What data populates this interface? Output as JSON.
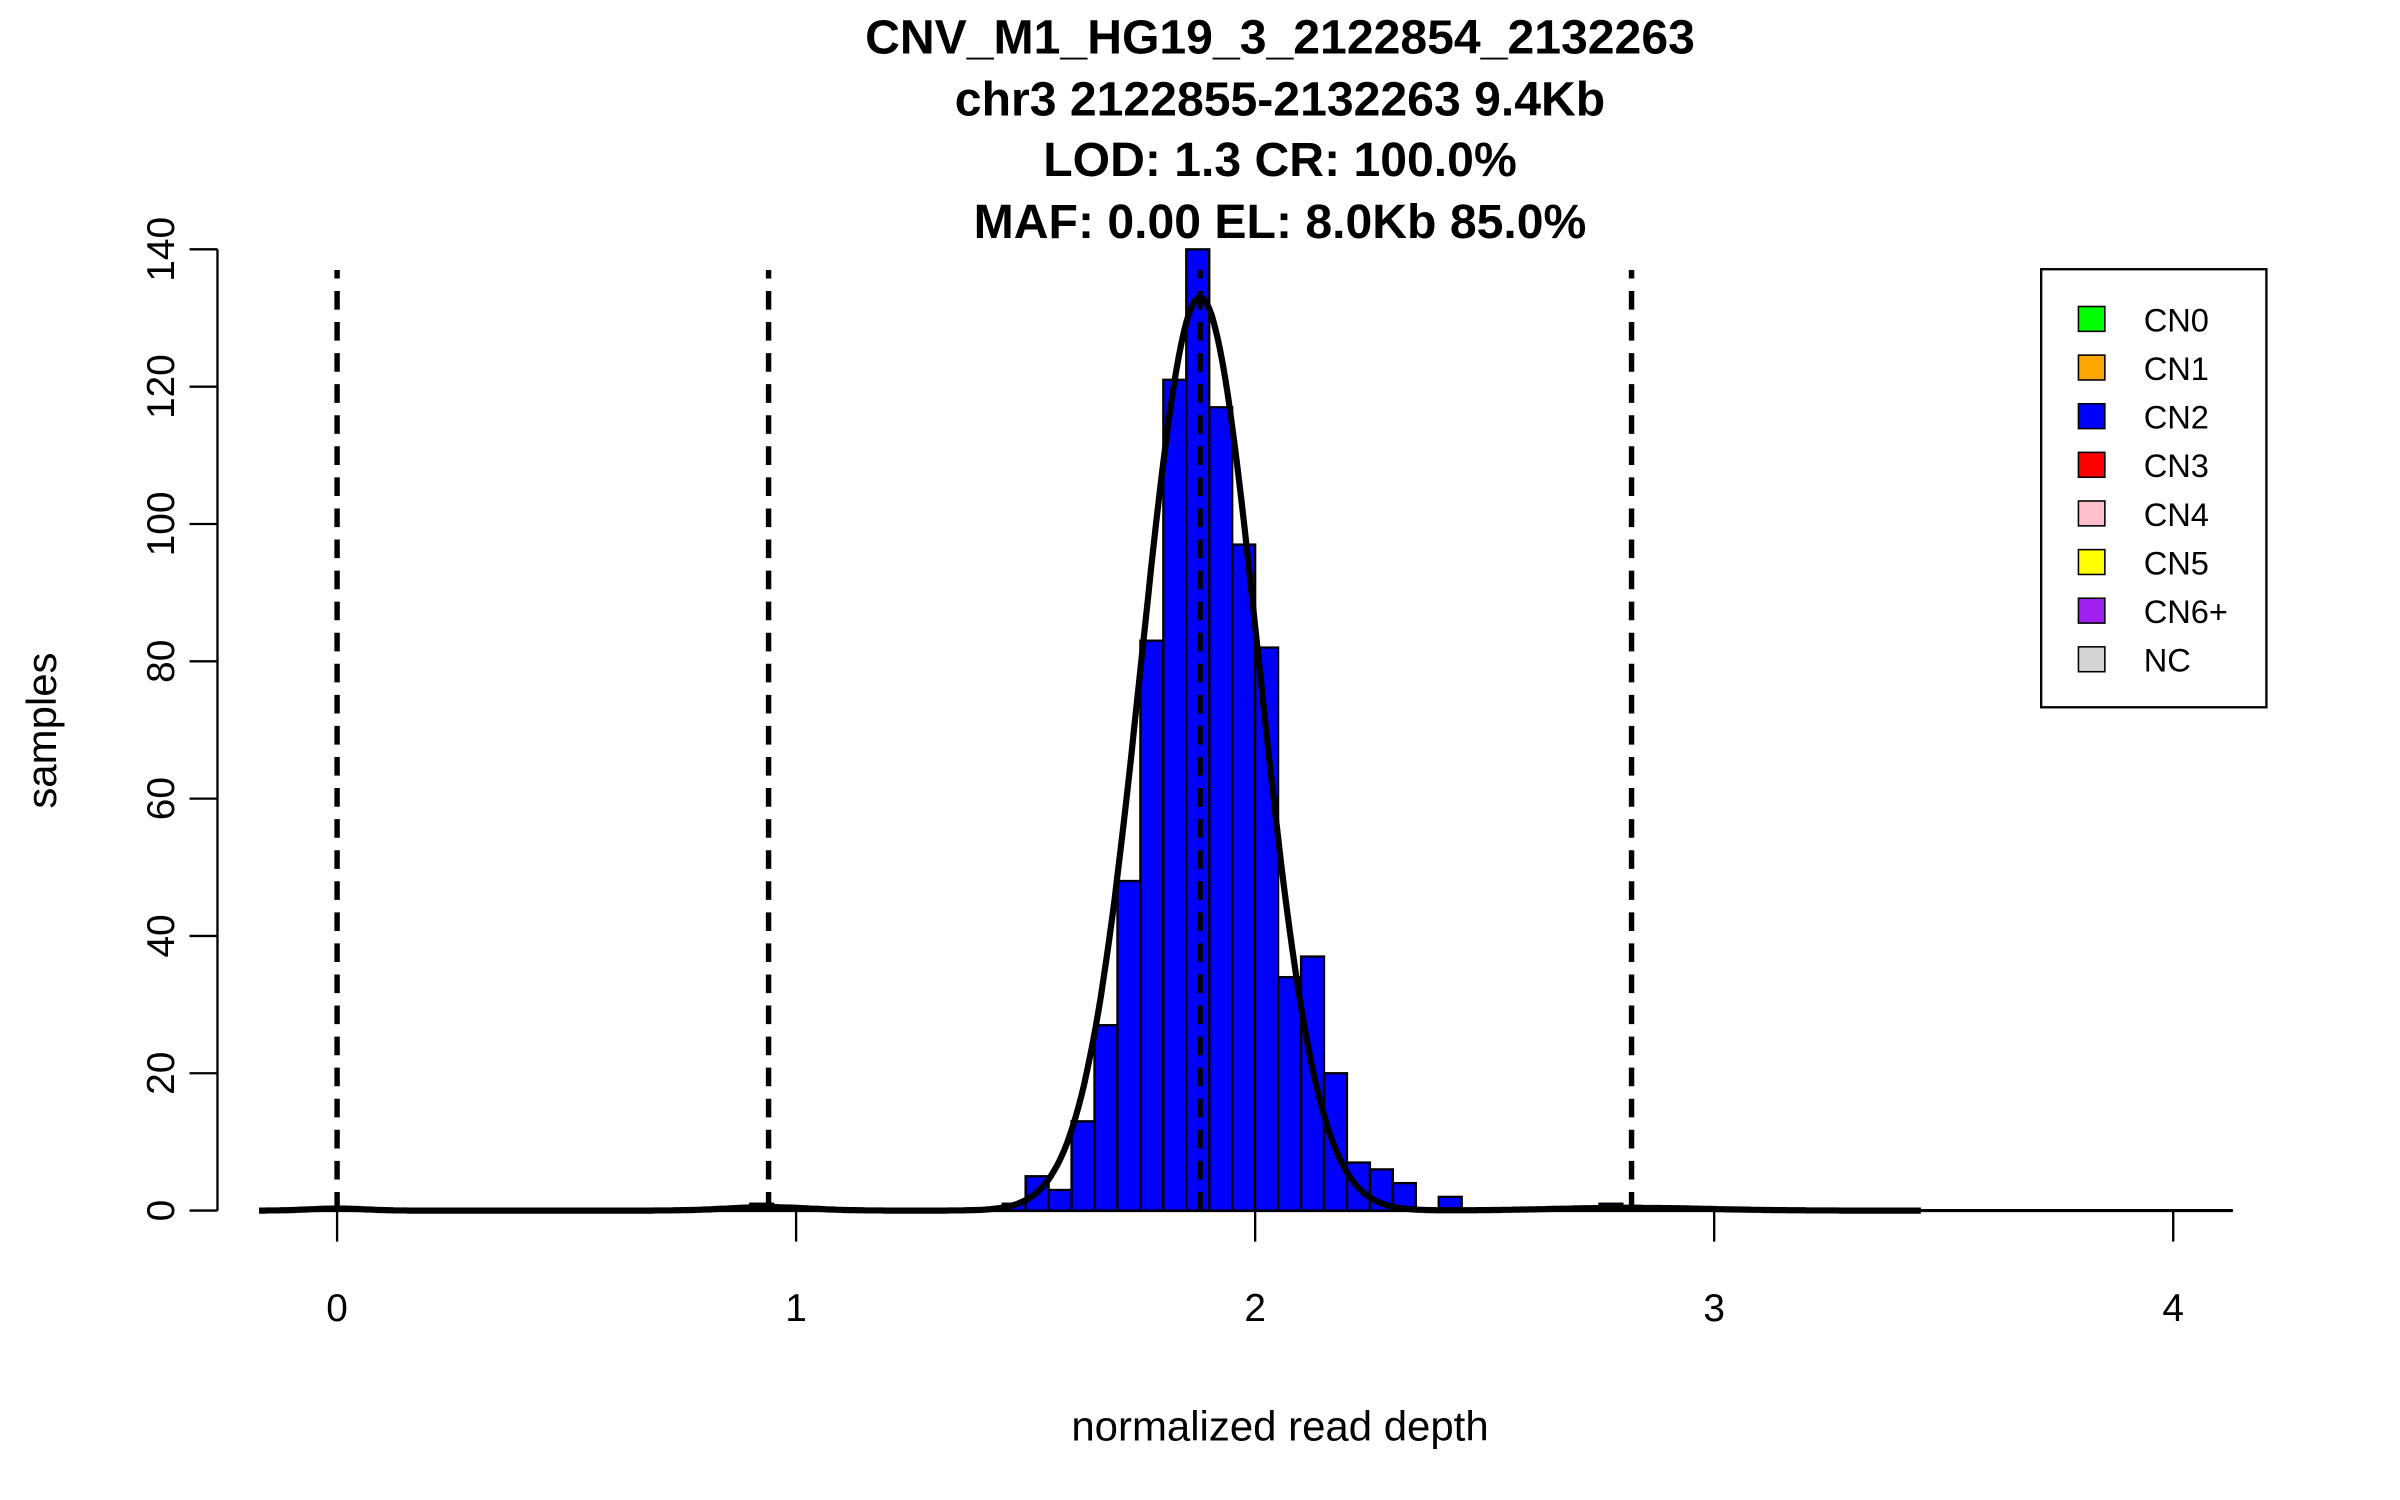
{
  "chart_data": {
    "type": "bar",
    "title_lines": [
      "CNV_M1_HG19_3_2122854_2132263",
      "chr3 2122855-2132263 9.4Kb",
      "LOD: 1.3 CR: 100.0%",
      "MAF: 0.00 EL: 8.0Kb 85.0%"
    ],
    "xlabel": "normalized read depth",
    "ylabel": "samples",
    "xlim": [
      -0.17,
      4.13
    ],
    "ylim": [
      0,
      140
    ],
    "xticks": [
      0,
      1,
      2,
      3,
      4
    ],
    "yticks": [
      0,
      20,
      40,
      60,
      80,
      100,
      120,
      140
    ],
    "bin_width": 0.05,
    "bins": [
      {
        "x": 0.9,
        "count": 1
      },
      {
        "x": 1.45,
        "count": 1
      },
      {
        "x": 1.5,
        "count": 5
      },
      {
        "x": 1.55,
        "count": 3
      },
      {
        "x": 1.6,
        "count": 13
      },
      {
        "x": 1.65,
        "count": 27
      },
      {
        "x": 1.7,
        "count": 48
      },
      {
        "x": 1.75,
        "count": 83
      },
      {
        "x": 1.8,
        "count": 121
      },
      {
        "x": 1.85,
        "count": 140
      },
      {
        "x": 1.9,
        "count": 117
      },
      {
        "x": 1.95,
        "count": 97
      },
      {
        "x": 2.0,
        "count": 82
      },
      {
        "x": 2.05,
        "count": 34
      },
      {
        "x": 2.1,
        "count": 37
      },
      {
        "x": 2.15,
        "count": 20
      },
      {
        "x": 2.2,
        "count": 7
      },
      {
        "x": 2.25,
        "count": 6
      },
      {
        "x": 2.3,
        "count": 4
      },
      {
        "x": 2.4,
        "count": 2
      },
      {
        "x": 2.75,
        "count": 1
      }
    ],
    "bar_color": "#0000ff",
    "fit_curve": {
      "components": [
        {
          "mean": 0.0,
          "sd": 0.06,
          "peak": 0.3
        },
        {
          "mean": 0.94,
          "sd": 0.09,
          "peak": 0.5
        },
        {
          "mean": 1.88,
          "sd": 0.127,
          "peak": 133
        },
        {
          "mean": 2.82,
          "sd": 0.17,
          "peak": 0.4
        }
      ],
      "range": [
        -0.17,
        3.45
      ]
    },
    "dashed_lines_x": [
      0,
      0.94,
      1.88,
      2.82
    ],
    "dashed_top": 137,
    "legend": {
      "placement": "top-right",
      "entries": [
        {
          "label": "CN0",
          "color": "#00ff00"
        },
        {
          "label": "CN1",
          "color": "#ffa500"
        },
        {
          "label": "CN2",
          "color": "#0000ff"
        },
        {
          "label": "CN3",
          "color": "#ff0000"
        },
        {
          "label": "CN4",
          "color": "#ffc0cb"
        },
        {
          "label": "CN5",
          "color": "#ffff00"
        },
        {
          "label": "CN6+",
          "color": "#a020f0"
        },
        {
          "label": "NC",
          "color": "#d3d3d3"
        }
      ]
    }
  }
}
